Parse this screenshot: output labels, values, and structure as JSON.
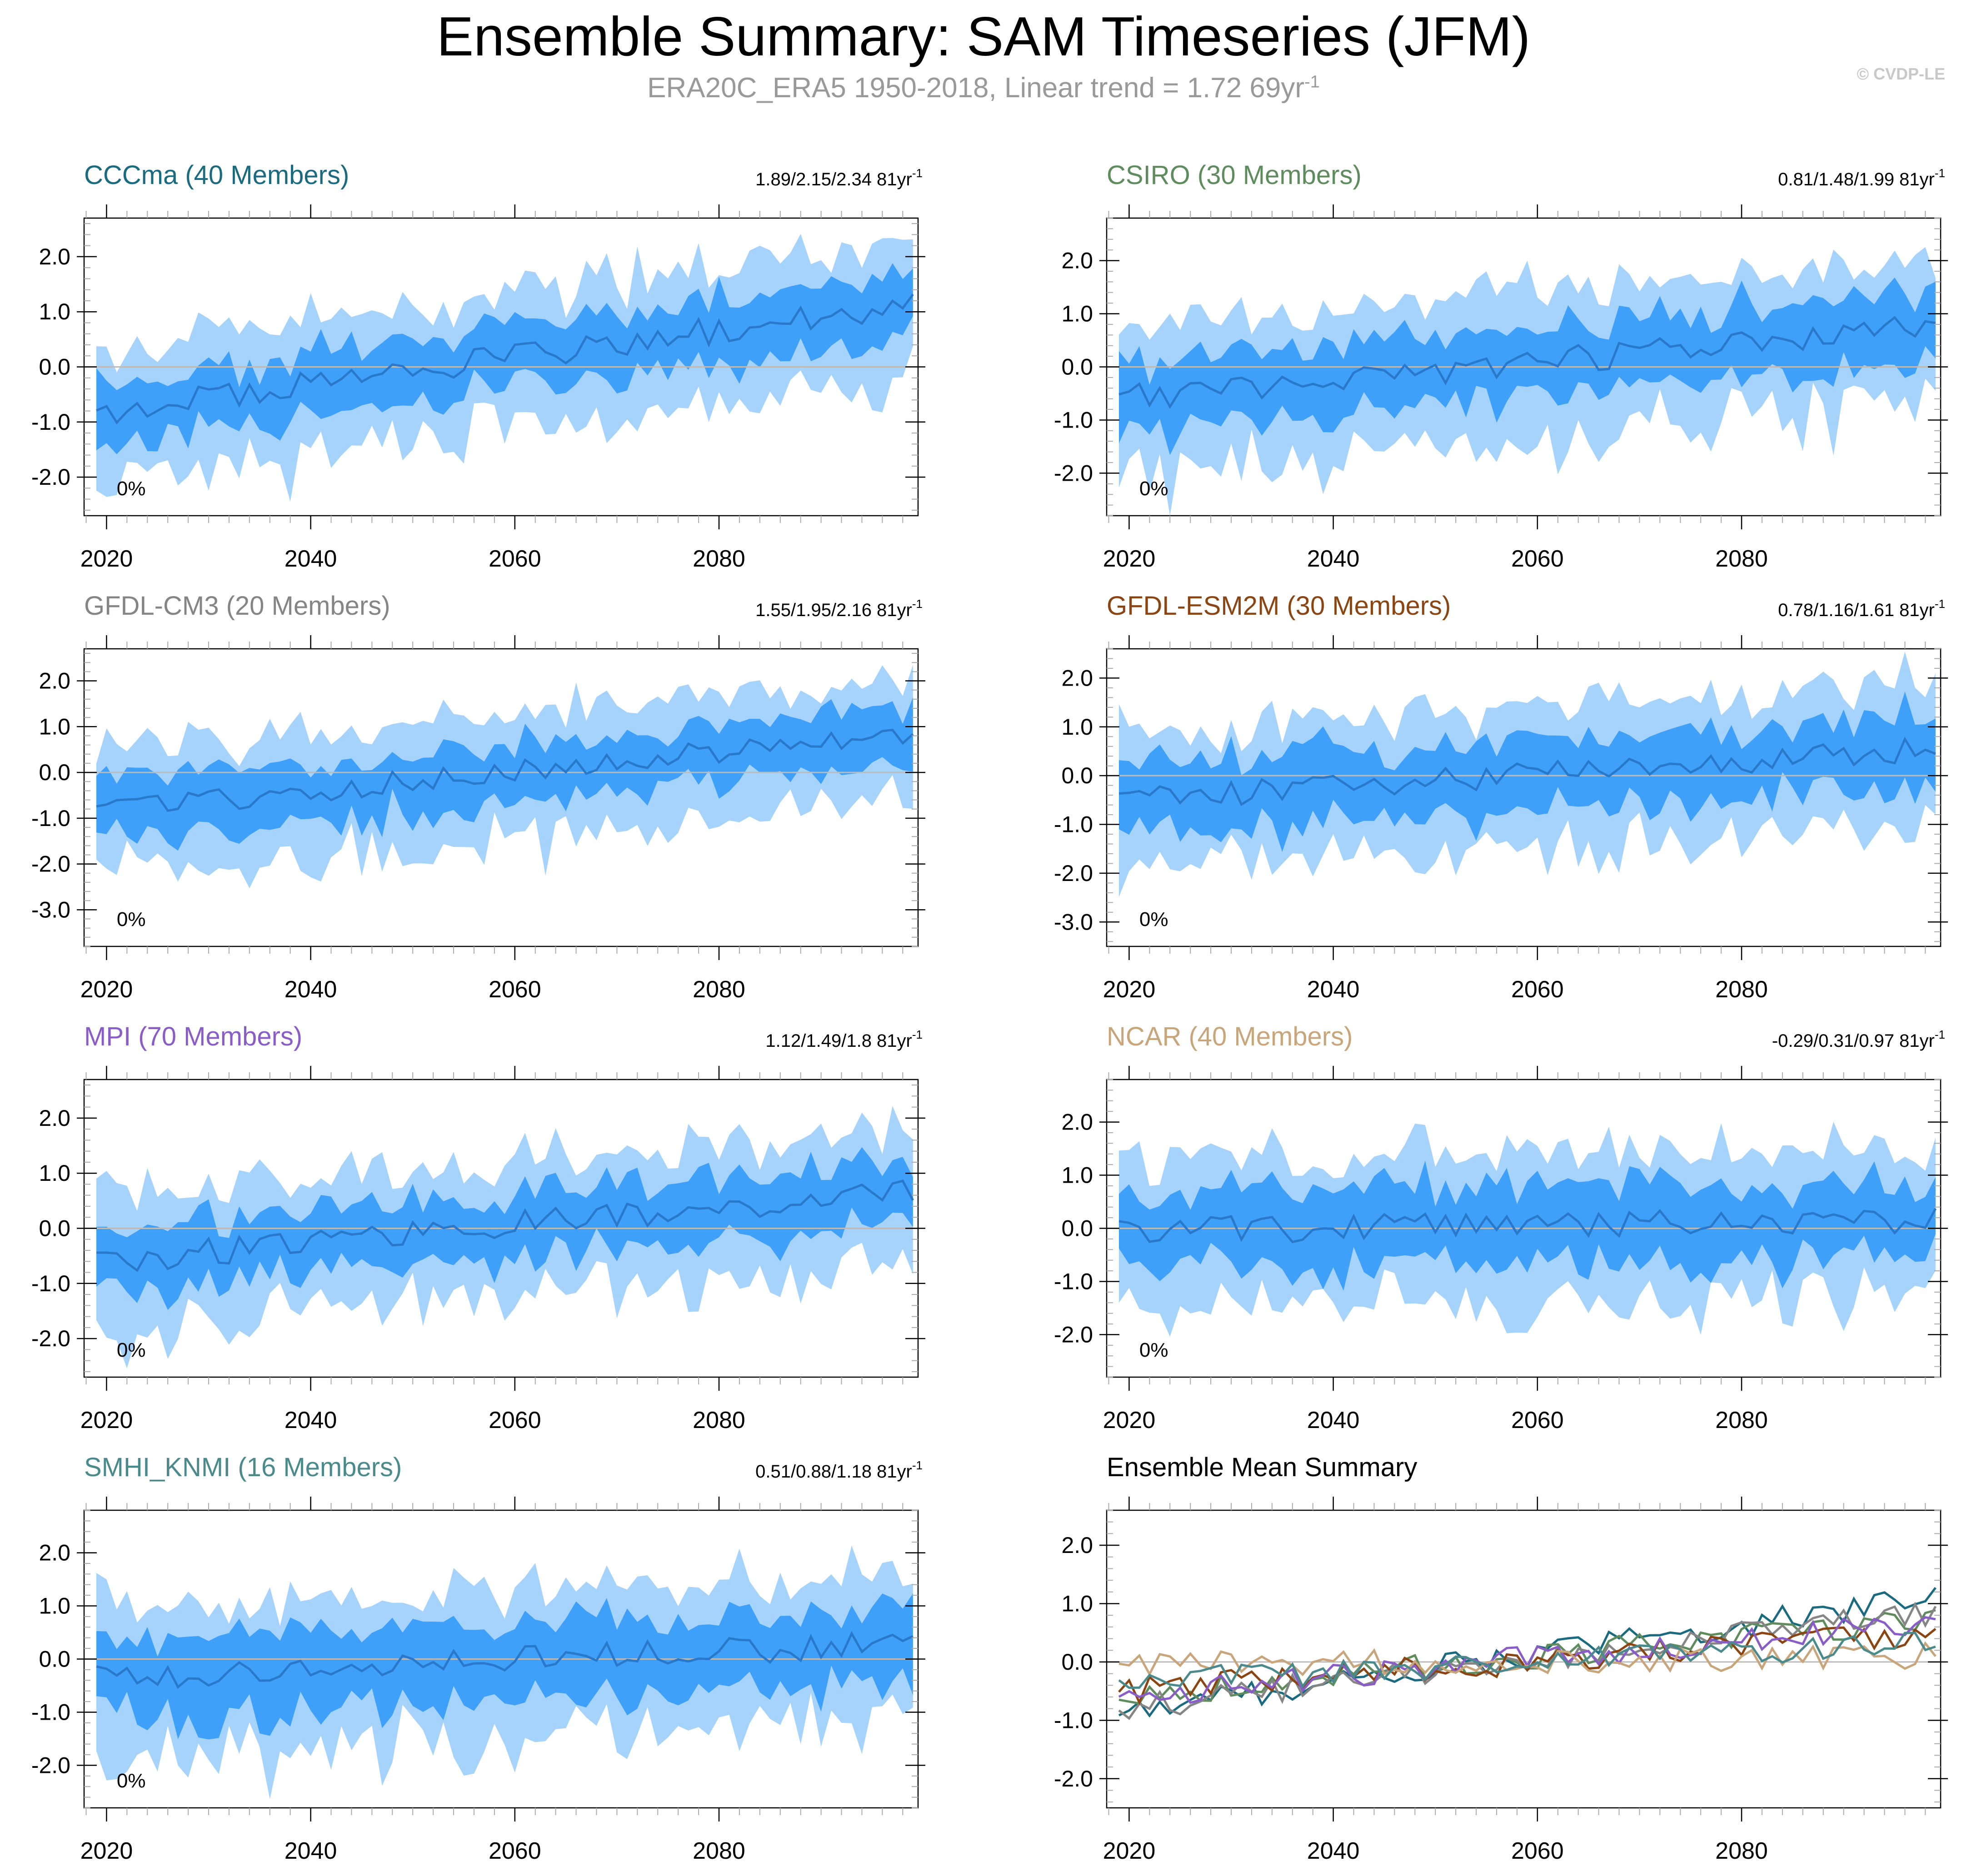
{
  "figure": {
    "title": "Ensemble Summary: SAM Timeseries (JFM)",
    "subtitle_main": "ERA20C_ERA5 1950-2018, Linear trend = 1.72 69yr",
    "subtitle_exp": "-1",
    "credit": "© CVDP-LE"
  },
  "colors": {
    "band_outer": "#a6d3fb",
    "band_inner": "#3ea0f9",
    "mean_line": "#2a78c9",
    "zero_line": "#bbbbbb",
    "axis": "#000000",
    "tick_minor": "#aaaaaa"
  },
  "chart_data": [
    {
      "type": "area",
      "name": "CCCma",
      "label": "CCCma (40 Members)",
      "title_color": "#1a6a80",
      "trend": "1.89/2.15/2.34 81yr",
      "trend_exp": "-1",
      "pct": "0%",
      "x_start": 2019,
      "x_end": 2099,
      "ylim": [
        -2.7,
        2.7
      ],
      "y_ticks": [
        2.0,
        1.0,
        0.0,
        -1.0,
        -2.0
      ],
      "y_tick_labels": [
        "2.0",
        "1.0",
        "0.0",
        "-1.0",
        "-2.0"
      ],
      "x_ticks": [
        2020,
        2040,
        2060,
        2080
      ],
      "x_tick_labels": [
        "2020",
        "2040",
        "2060",
        "2080"
      ],
      "mean_start": -0.85,
      "mean_end": 1.15,
      "spread_inner": 0.55,
      "spread_outer": 1.15
    },
    {
      "type": "area",
      "name": "CSIRO",
      "label": "CSIRO (30 Members)",
      "title_color": "#5e8c5c",
      "trend": "0.81/1.48/1.99 81yr",
      "trend_exp": "-1",
      "pct": "0%",
      "x_start": 2019,
      "x_end": 2099,
      "ylim": [
        -2.8,
        2.8
      ],
      "y_ticks": [
        2.0,
        1.0,
        0.0,
        -1.0,
        -2.0
      ],
      "y_tick_labels": [
        "2.0",
        "1.0",
        "0.0",
        "-1.0",
        "-2.0"
      ],
      "x_ticks": [
        2020,
        2040,
        2060,
        2080
      ],
      "x_tick_labels": [
        "2020",
        "2040",
        "2060",
        "2080"
      ],
      "mean_start": -0.6,
      "mean_end": 0.75,
      "spread_inner": 0.65,
      "spread_outer": 1.3
    },
    {
      "type": "area",
      "name": "GFDL-CM3",
      "label": "GFDL-CM3 (20 Members)",
      "title_color": "#858585",
      "trend": "1.55/1.95/2.16 81yr",
      "trend_exp": "-1",
      "pct": "0%",
      "x_start": 2019,
      "x_end": 2099,
      "ylim": [
        -3.8,
        2.7
      ],
      "y_ticks": [
        2.0,
        1.0,
        0.0,
        -1.0,
        -2.0,
        -3.0
      ],
      "y_tick_labels": [
        "2.0",
        "1.0",
        "0.0",
        "-1.0",
        "-2.0",
        "-3.0"
      ],
      "x_ticks": [
        2020,
        2040,
        2060,
        2080
      ],
      "x_tick_labels": [
        "2020",
        "2040",
        "2060",
        "2080"
      ],
      "mean_start": -0.85,
      "mean_end": 0.85,
      "spread_inner": 0.6,
      "spread_outer": 1.3
    },
    {
      "type": "area",
      "name": "GFDL-ESM2M",
      "label": "GFDL-ESM2M (30 Members)",
      "title_color": "#8b4513",
      "trend": "0.78/1.16/1.61 81yr",
      "trend_exp": "-1",
      "pct": "0%",
      "x_start": 2019,
      "x_end": 2099,
      "ylim": [
        -3.5,
        2.6
      ],
      "y_ticks": [
        2.0,
        1.0,
        0.0,
        -1.0,
        -2.0,
        -3.0
      ],
      "y_tick_labels": [
        "2.0",
        "1.0",
        "0.0",
        "-1.0",
        "-2.0",
        "-3.0"
      ],
      "x_ticks": [
        2020,
        2040,
        2060,
        2080
      ],
      "x_tick_labels": [
        "2020",
        "2040",
        "2060",
        "2080"
      ],
      "mean_start": -0.5,
      "mean_end": 0.55,
      "spread_inner": 0.7,
      "spread_outer": 1.35
    },
    {
      "type": "area",
      "name": "MPI",
      "label": "MPI (70 Members)",
      "title_color": "#8a5cc8",
      "trend": "1.12/1.49/1.8 81yr",
      "trend_exp": "-1",
      "pct": "0%",
      "x_start": 2019,
      "x_end": 2099,
      "ylim": [
        -2.7,
        2.7
      ],
      "y_ticks": [
        2.0,
        1.0,
        0.0,
        -1.0,
        -2.0
      ],
      "y_tick_labels": [
        "2.0",
        "1.0",
        "0.0",
        "-1.0",
        "-2.0"
      ],
      "x_ticks": [
        2020,
        2040,
        2060,
        2080
      ],
      "x_tick_labels": [
        "2020",
        "2040",
        "2060",
        "2080"
      ],
      "mean_start": -0.6,
      "mean_end": 0.7,
      "spread_inner": 0.55,
      "spread_outer": 1.15
    },
    {
      "type": "area",
      "name": "NCAR",
      "label": "NCAR (40 Members)",
      "title_color": "#c8a57a",
      "trend": "-0.29/0.31/0.97 81yr",
      "trend_exp": "-1",
      "pct": "0%",
      "x_start": 2019,
      "x_end": 2099,
      "ylim": [
        -2.8,
        2.8
      ],
      "y_ticks": [
        2.0,
        1.0,
        0.0,
        -1.0,
        -2.0
      ],
      "y_tick_labels": [
        "2.0",
        "1.0",
        "0.0",
        "-1.0",
        "-2.0"
      ],
      "x_ticks": [
        2020,
        2040,
        2060,
        2080
      ],
      "x_tick_labels": [
        "2020",
        "2040",
        "2060",
        "2080"
      ],
      "mean_start": -0.05,
      "mean_end": 0.15,
      "spread_inner": 0.7,
      "spread_outer": 1.35
    },
    {
      "type": "area",
      "name": "SMHI_KNMI",
      "label": "SMHI_KNMI (16 Members)",
      "title_color": "#4a8a8c",
      "trend": "0.51/0.88/1.18 81yr",
      "trend_exp": "-1",
      "pct": "0%",
      "x_start": 2019,
      "x_end": 2099,
      "ylim": [
        -2.8,
        2.8
      ],
      "y_ticks": [
        2.0,
        1.0,
        0.0,
        -1.0,
        -2.0
      ],
      "y_tick_labels": [
        "2.0",
        "1.0",
        "0.0",
        "-1.0",
        "-2.0"
      ],
      "x_ticks": [
        2020,
        2040,
        2060,
        2080
      ],
      "x_tick_labels": [
        "2020",
        "2040",
        "2060",
        "2080"
      ],
      "mean_start": -0.35,
      "mean_end": 0.3,
      "spread_inner": 0.7,
      "spread_outer": 1.3
    },
    {
      "type": "line",
      "name": "Ensemble Mean",
      "label": "Ensemble Mean Summary",
      "title_color": "#000000",
      "x_start": 2019,
      "x_end": 2099,
      "ylim": [
        -2.5,
        2.6
      ],
      "y_ticks": [
        2.0,
        1.0,
        0.0,
        -1.0,
        -2.0
      ],
      "y_tick_labels": [
        "2.0",
        "1.0",
        "0.0",
        "-1.0",
        "-2.0"
      ],
      "x_ticks": [
        2020,
        2040,
        2060,
        2080
      ],
      "x_tick_labels": [
        "2020",
        "2040",
        "2060",
        "2080"
      ],
      "series": [
        {
          "name": "CCCma",
          "color": "#1a6a80",
          "start": -0.85,
          "end": 1.1
        },
        {
          "name": "CSIRO",
          "color": "#5e8c5c",
          "start": -0.6,
          "end": 0.75
        },
        {
          "name": "GFDL-CM3",
          "color": "#858585",
          "start": -0.8,
          "end": 0.85
        },
        {
          "name": "GFDL-ESM2M",
          "color": "#8b4513",
          "start": -0.5,
          "end": 0.5
        },
        {
          "name": "MPI",
          "color": "#8a5cc8",
          "start": -0.6,
          "end": 0.7
        },
        {
          "name": "NCAR",
          "color": "#c8a57a",
          "start": -0.05,
          "end": 0.1
        },
        {
          "name": "SMHI_KNMI",
          "color": "#4a8a8c",
          "start": -0.35,
          "end": 0.3
        }
      ]
    }
  ]
}
